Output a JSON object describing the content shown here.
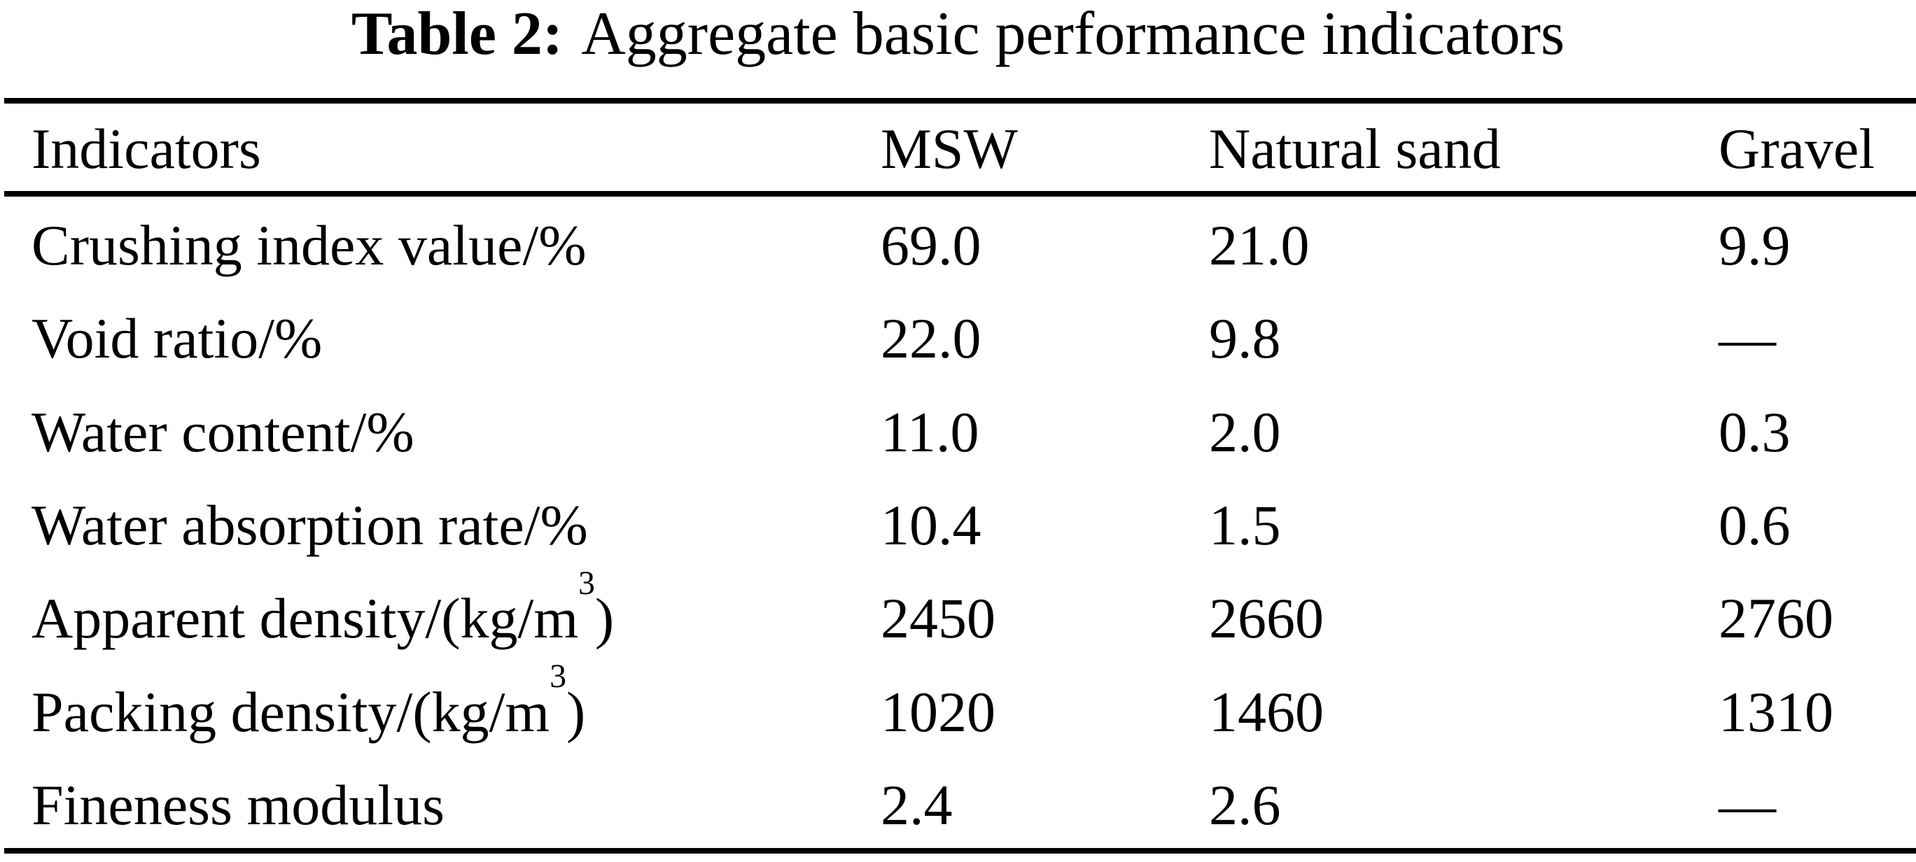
{
  "caption": {
    "label": "Table 2:",
    "text": "Aggregate basic performance indicators"
  },
  "table": {
    "columns": [
      "Indicators",
      "MSW",
      "Natural sand",
      "Gravel"
    ],
    "rows": [
      {
        "label": "Crushing index value/%",
        "sup": "",
        "label_end": "",
        "msw": "69.0",
        "natural_sand": "21.0",
        "gravel": "9.9"
      },
      {
        "label": "Void ratio/%",
        "sup": "",
        "label_end": "",
        "msw": "22.0",
        "natural_sand": "9.8",
        "gravel": "—"
      },
      {
        "label": "Water content/%",
        "sup": "",
        "label_end": "",
        "msw": "11.0",
        "natural_sand": "2.0",
        "gravel": "0.3"
      },
      {
        "label": "Water absorption rate/%",
        "sup": "",
        "label_end": "",
        "msw": "10.4",
        "natural_sand": "1.5",
        "gravel": "0.6"
      },
      {
        "label": "Apparent density/(kg/m",
        "sup": "3",
        "label_end": ")",
        "msw": "2450",
        "natural_sand": "2660",
        "gravel": "2760"
      },
      {
        "label": "Packing density/(kg/m",
        "sup": "3",
        "label_end": ")",
        "msw": "1020",
        "natural_sand": "1460",
        "gravel": "1310"
      },
      {
        "label": "Fineness modulus",
        "sup": "",
        "label_end": "",
        "msw": "2.4",
        "natural_sand": "2.6",
        "gravel": "—"
      }
    ]
  },
  "chart_data": {
    "type": "table",
    "title": "Table 2: Aggregate basic performance indicators",
    "columns": [
      "Indicators",
      "MSW",
      "Natural sand",
      "Gravel"
    ],
    "rows": [
      [
        "Crushing index value/%",
        "69.0",
        "21.0",
        "9.9"
      ],
      [
        "Void ratio/%",
        "22.0",
        "9.8",
        "—"
      ],
      [
        "Water content/%",
        "11.0",
        "2.0",
        "0.3"
      ],
      [
        "Water absorption rate/%",
        "10.4",
        "1.5",
        "0.6"
      ],
      [
        "Apparent density/(kg/m³)",
        "2450",
        "2660",
        "2760"
      ],
      [
        "Packing density/(kg/m³)",
        "1020",
        "1460",
        "1310"
      ],
      [
        "Fineness modulus",
        "2.4",
        "2.6",
        "—"
      ]
    ]
  },
  "colors": {
    "background": "#ffffff",
    "text": "#000000",
    "rule": "#000000"
  }
}
